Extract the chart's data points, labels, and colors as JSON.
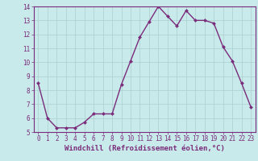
{
  "x": [
    0,
    1,
    2,
    3,
    4,
    5,
    6,
    7,
    8,
    9,
    10,
    11,
    12,
    13,
    14,
    15,
    16,
    17,
    18,
    19,
    20,
    21,
    22,
    23
  ],
  "y": [
    8.5,
    6.0,
    5.3,
    5.3,
    5.3,
    5.7,
    6.3,
    6.3,
    6.3,
    8.4,
    10.1,
    11.8,
    12.9,
    14.0,
    13.3,
    12.6,
    13.7,
    13.0,
    13.0,
    12.8,
    11.1,
    10.1,
    8.5,
    6.8
  ],
  "xlim": [
    -0.5,
    23.5
  ],
  "ylim": [
    5,
    14
  ],
  "yticks": [
    5,
    6,
    7,
    8,
    9,
    10,
    11,
    12,
    13,
    14
  ],
  "xticks": [
    0,
    1,
    2,
    3,
    4,
    5,
    6,
    7,
    8,
    9,
    10,
    11,
    12,
    13,
    14,
    15,
    16,
    17,
    18,
    19,
    20,
    21,
    22,
    23
  ],
  "xlabel": "Windchill (Refroidissement éolien,°C)",
  "line_color": "#7b2b7b",
  "marker": "D",
  "marker_size": 2.0,
  "bg_color": "#c8eaea",
  "grid_color": "#aacece",
  "tick_fontsize": 5.5,
  "xlabel_fontsize": 6.5,
  "linewidth": 1.0
}
